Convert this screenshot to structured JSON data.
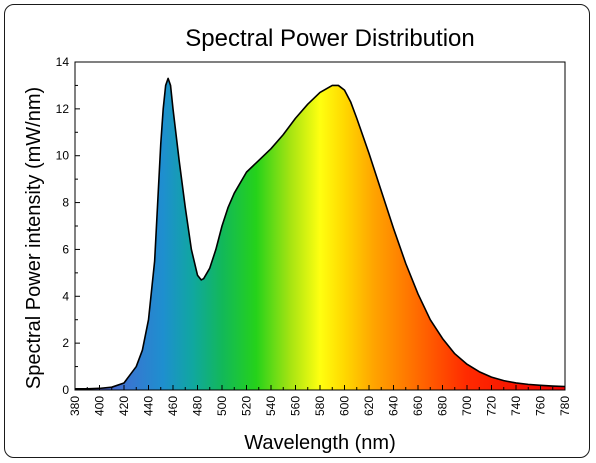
{
  "chart_data": {
    "type": "area",
    "title": "Spectral Power Distribution",
    "xlabel": "Wavelength (nm)",
    "ylabel": "Spectral Power intensity (mW/nm)",
    "xlim": [
      380,
      780
    ],
    "ylim": [
      0,
      14
    ],
    "x_ticks": [
      "380",
      "400",
      "420",
      "440",
      "460",
      "480",
      "500",
      "520",
      "540",
      "560",
      "580",
      "600",
      "620",
      "640",
      "660",
      "680",
      "700",
      "720",
      "740",
      "760",
      "780"
    ],
    "y_ticks": [
      "0",
      "2",
      "4",
      "6",
      "8",
      "10",
      "12",
      "14"
    ],
    "fill": "visible-spectrum gradient",
    "outline_color": "#000000",
    "x": [
      380,
      390,
      400,
      410,
      420,
      430,
      435,
      440,
      445,
      448,
      450,
      452,
      454,
      456,
      458,
      460,
      465,
      470,
      475,
      480,
      483,
      485,
      490,
      495,
      500,
      505,
      510,
      520,
      530,
      540,
      550,
      560,
      570,
      580,
      590,
      595,
      600,
      605,
      610,
      620,
      630,
      640,
      650,
      660,
      670,
      680,
      690,
      700,
      710,
      720,
      730,
      740,
      750,
      760,
      770,
      780
    ],
    "y": [
      0.05,
      0.05,
      0.07,
      0.12,
      0.3,
      1.0,
      1.7,
      3.0,
      5.5,
      8.5,
      10.5,
      12.0,
      13.0,
      13.3,
      13.0,
      12.0,
      9.8,
      7.8,
      6.0,
      4.9,
      4.7,
      4.75,
      5.2,
      6.0,
      7.0,
      7.8,
      8.4,
      9.3,
      9.8,
      10.3,
      10.9,
      11.6,
      12.2,
      12.7,
      13.0,
      13.0,
      12.8,
      12.3,
      11.6,
      10.1,
      8.5,
      6.9,
      5.4,
      4.1,
      3.0,
      2.2,
      1.55,
      1.1,
      0.78,
      0.55,
      0.4,
      0.3,
      0.24,
      0.2,
      0.17,
      0.15
    ]
  }
}
